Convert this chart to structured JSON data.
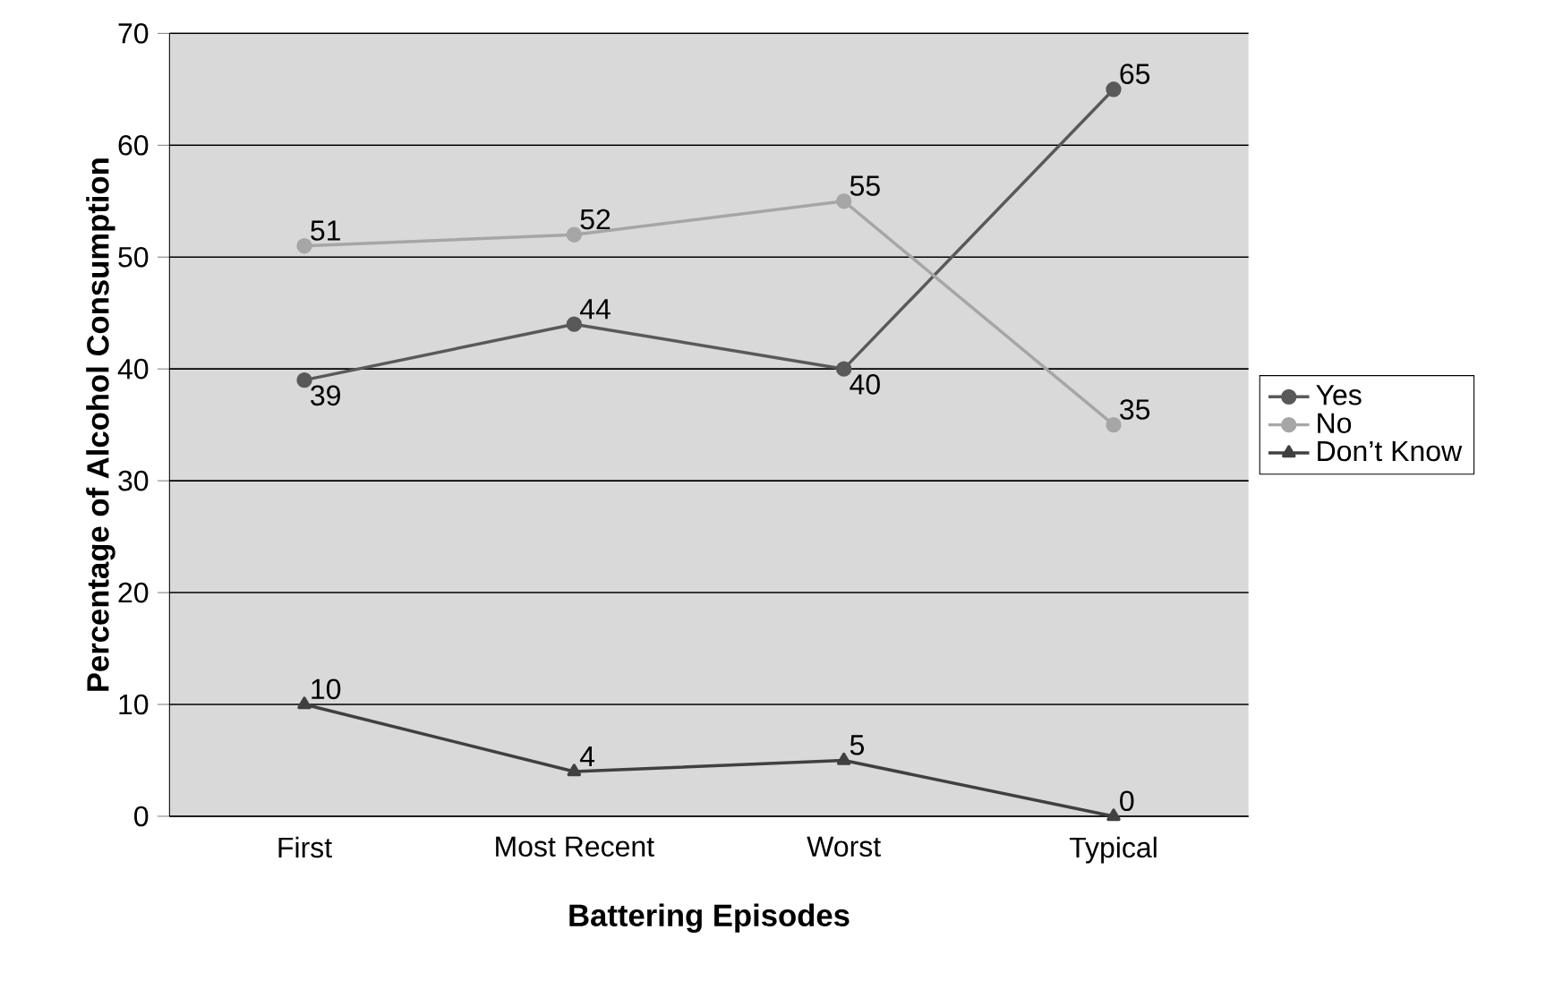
{
  "chart_data": {
    "type": "line",
    "xlabel": "Battering Episodes",
    "ylabel": "Percentage of Alcohol Consumption",
    "categories": [
      "First",
      "Most Recent",
      "Worst",
      "Typical"
    ],
    "series": [
      {
        "name": "Yes",
        "color": "#595959",
        "marker": "circle",
        "values": [
          39,
          44,
          40,
          65
        ]
      },
      {
        "name": "No",
        "color": "#a6a6a6",
        "marker": "circle",
        "values": [
          51,
          52,
          55,
          35
        ]
      },
      {
        "name": "Don’t Know",
        "color": "#404040",
        "marker": "triangle",
        "values": [
          10,
          4,
          5,
          0
        ]
      }
    ],
    "ylim": [
      0,
      70
    ],
    "yticks": [
      0,
      10,
      20,
      30,
      40,
      50,
      60,
      70
    ],
    "grid": "y",
    "legend": "right",
    "data_labels": true,
    "line_style": "solid"
  }
}
